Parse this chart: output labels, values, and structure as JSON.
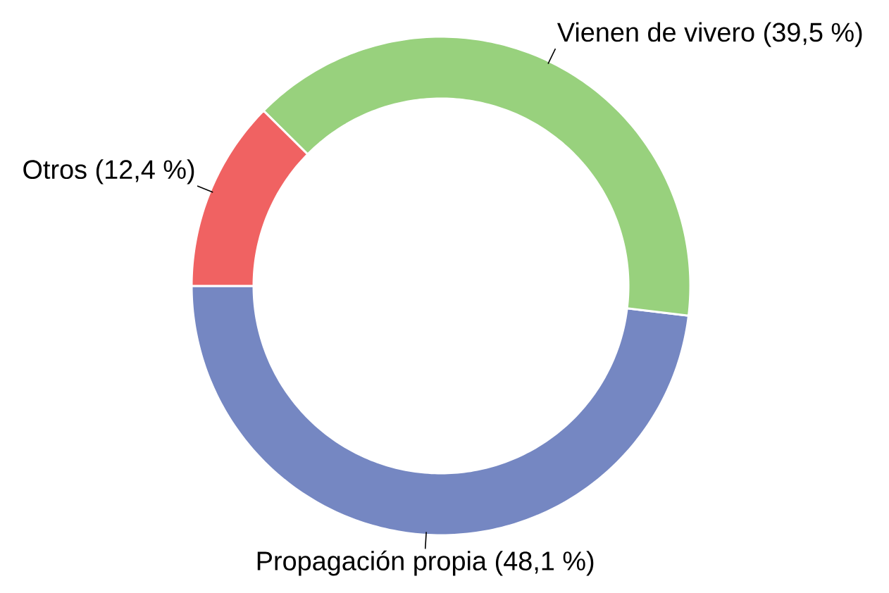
{
  "chart_data": {
    "type": "donut",
    "categories": [
      "Propagación propia",
      "Vienen de vivero",
      "Otros"
    ],
    "values": [
      48.1,
      39.5,
      12.4
    ],
    "value_labels": [
      "(48,1 %)",
      "(39,5 %)",
      "(12,4 %)"
    ],
    "colors": [
      "#7587c2",
      "#98d17d",
      "#f06262"
    ]
  }
}
